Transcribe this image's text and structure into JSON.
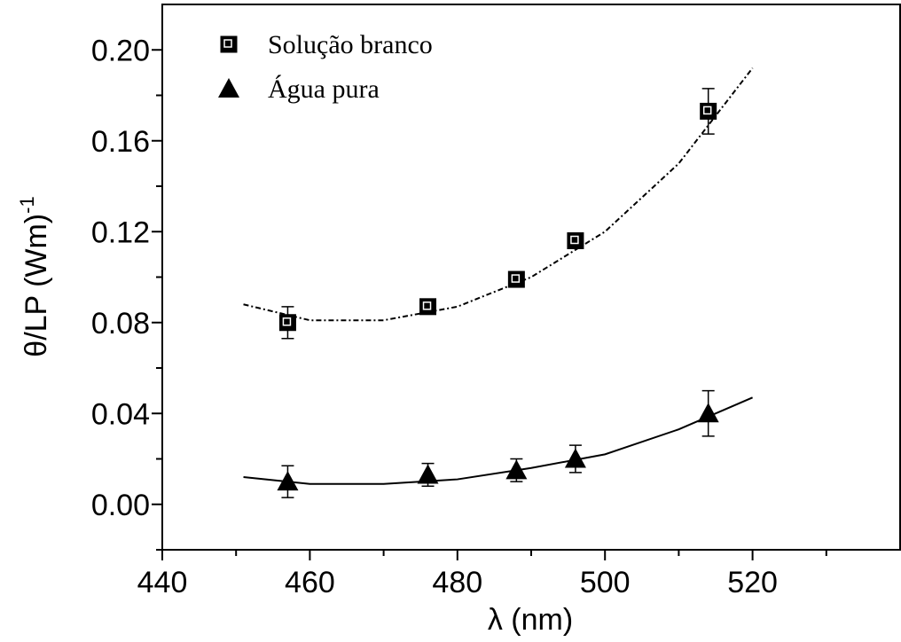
{
  "chart_data": {
    "type": "scatter",
    "xlabel": "λ (nm)",
    "ylabel": "θ/LP (Wm)",
    "ylabel_superscript": "-1",
    "xlim": [
      440,
      540
    ],
    "xticks": [
      440,
      460,
      480,
      500,
      520
    ],
    "xminorticks": [
      450,
      470,
      490,
      510,
      530
    ],
    "ylim": [
      -0.02,
      0.22
    ],
    "yticks": [
      {
        "value": 0,
        "label": "0.00"
      },
      {
        "value": 0.04,
        "label": "0.04"
      },
      {
        "value": 0.08,
        "label": "0.08"
      },
      {
        "value": 0.12,
        "label": "0.12"
      },
      {
        "value": 0.16,
        "label": "0.16"
      },
      {
        "value": 0.2,
        "label": "0.20"
      }
    ],
    "yminorticks": [
      -0.02,
      0.02,
      0.06,
      0.1,
      0.14,
      0.18
    ],
    "legend": "upper-left",
    "series": [
      {
        "name": "Solução branco",
        "color": "#000000",
        "marker": "square",
        "x": [
          457,
          476,
          488,
          496,
          514
        ],
        "values": [
          0.08,
          0.087,
          0.099,
          0.116,
          0.173
        ],
        "errors": [
          0.007,
          0.002,
          0.002,
          0.002,
          0.01
        ],
        "fit_x": [
          451,
          460,
          470,
          480,
          490,
          500,
          510,
          520
        ],
        "fit_values": [
          0.088,
          0.081,
          0.081,
          0.087,
          0.1,
          0.12,
          0.15,
          0.192
        ],
        "fit_style": "dashdot"
      },
      {
        "name": "Água pura",
        "color": "#000000",
        "marker": "triangle",
        "x": [
          457,
          476,
          488,
          496,
          514
        ],
        "values": [
          0.01,
          0.013,
          0.015,
          0.02,
          0.04
        ],
        "errors": [
          0.007,
          0.005,
          0.005,
          0.006,
          0.01
        ],
        "fit_x": [
          451,
          460,
          470,
          480,
          490,
          500,
          510,
          520
        ],
        "fit_values": [
          0.012,
          0.009,
          0.009,
          0.011,
          0.016,
          0.022,
          0.033,
          0.047
        ],
        "fit_style": "solid"
      }
    ]
  }
}
